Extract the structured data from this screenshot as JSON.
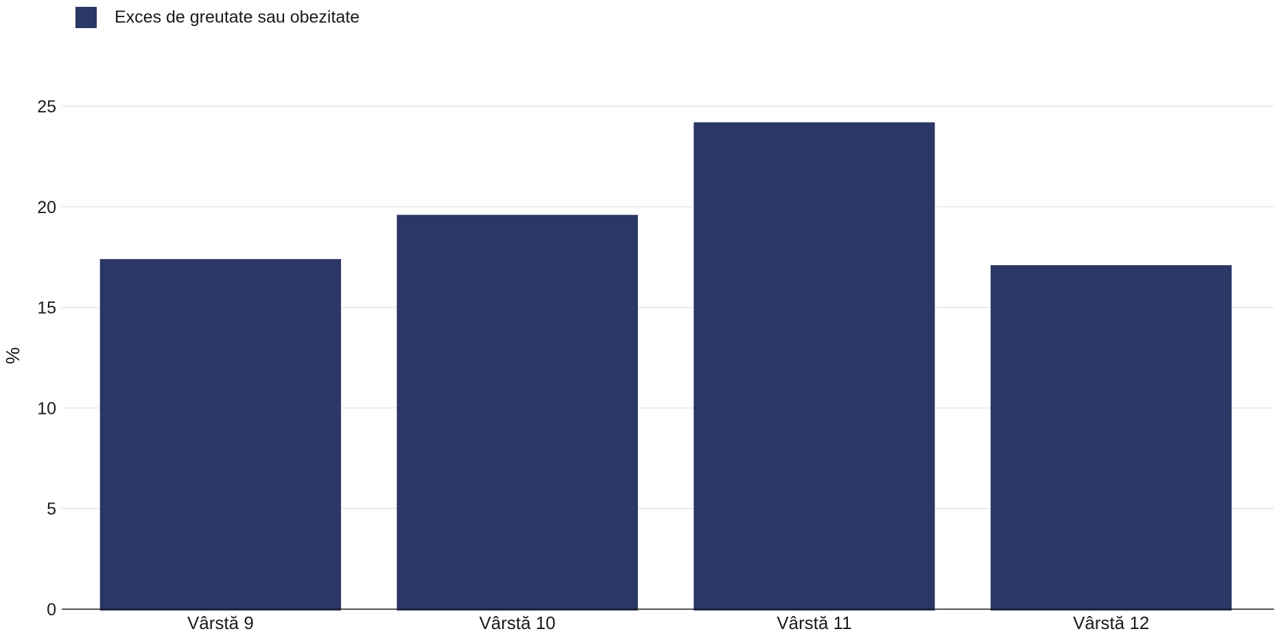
{
  "chart_data": {
    "type": "bar",
    "categories": [
      "Vârstă 9",
      "Vârstă 10",
      "Vârstă 11",
      "Vârstă 12"
    ],
    "series": [
      {
        "name": "Exces de greutate sau obezitate",
        "values": [
          17.4,
          19.6,
          24.2,
          17.1
        ],
        "color": "#2b3764"
      }
    ],
    "ylabel": "%",
    "ylim": [
      0,
      25
    ],
    "yticks": [
      "0",
      "5",
      "10",
      "15",
      "20",
      "25"
    ],
    "grid": true,
    "legend_position": "top-left"
  }
}
